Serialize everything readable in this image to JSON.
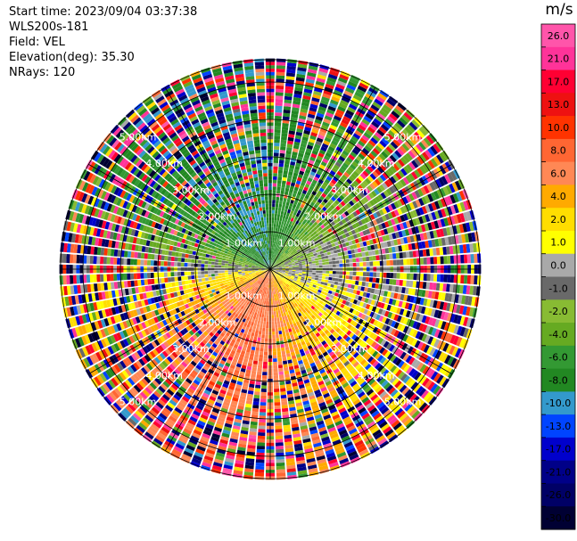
{
  "header": {
    "start_time": "Start time: 2023/09/04 03:37:38",
    "instrument": "WLS200s-181",
    "field": "Field: VEL",
    "elevation": "Elevation(deg): 35.30",
    "nrays": "NRays: 120"
  },
  "chart_data": {
    "type": "heatmap",
    "subtype": "polar-ppi",
    "field": "VEL",
    "units": "m/s",
    "n_rays": 120,
    "range_rings_km": [
      1.0,
      2.0,
      3.0,
      4.0,
      5.0
    ],
    "ring_labels": [
      "1.00km",
      "2.00km",
      "3.00km",
      "4.00km",
      "5.00km"
    ],
    "max_range_km": 5.6,
    "azimuth_spokes_deg": [
      0,
      30,
      60,
      90,
      120,
      150,
      180,
      210,
      240,
      270,
      300,
      330
    ],
    "colorbar": {
      "title": "m/s",
      "tick_labels": [
        "26.0",
        "21.0",
        "17.0",
        "13.0",
        "10.0",
        "8.0",
        "6.0",
        "4.0",
        "2.0",
        "1.0",
        "0.0",
        "-1.0",
        "-2.0",
        "-4.0",
        "-6.0",
        "-8.0",
        "-10.0",
        "-13.0",
        "-17.0",
        "-21.0",
        "-26.0",
        "-30.0"
      ],
      "bounds": [
        30,
        26,
        21,
        17,
        13,
        10,
        8,
        6,
        4,
        2,
        1,
        0,
        -1,
        -2,
        -4,
        -6,
        -8,
        -10,
        -13,
        -17,
        -21,
        -26,
        -30
      ],
      "colors": [
        "#ff55aa",
        "#ff3399",
        "#ff0033",
        "#ee1111",
        "#ff3300",
        "#ff6633",
        "#ff8855",
        "#ffaa00",
        "#ffdd00",
        "#ffff00",
        "#a9a9a9",
        "#696969",
        "#88bb33",
        "#66aa22",
        "#339933",
        "#228822",
        "#3399cc",
        "#0044ff",
        "#0000cc",
        "#000088",
        "#000066",
        "#000033"
      ]
    },
    "near_range_pattern": {
      "north_sector": "negative velocities (green, about -2 to -8 m/s)",
      "south_sector": "positive velocities (yellow/orange, about 2 to 10 m/s)",
      "outer_ranges": "noisy, mixed values across the full scale"
    },
    "grid": true
  }
}
